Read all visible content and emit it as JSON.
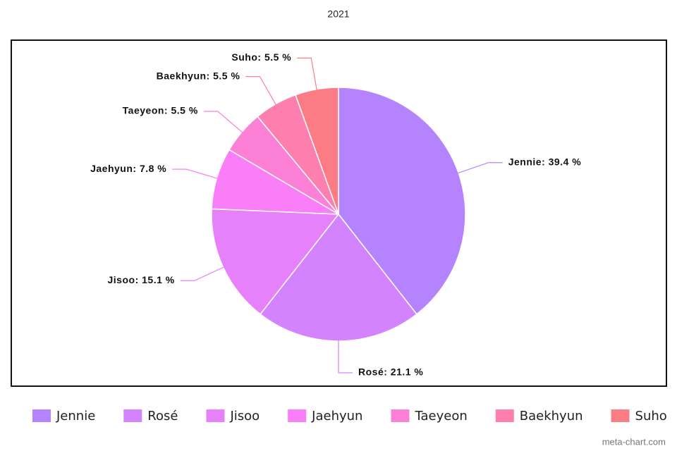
{
  "chart_data": {
    "type": "pie",
    "title": "2021",
    "categories": [
      "Jennie",
      "Rosé",
      "Jisoo",
      "Jaehyun",
      "Taeyeon",
      "Baekhyun",
      "Suho"
    ],
    "values": [
      39.4,
      21.1,
      15.1,
      7.8,
      5.5,
      5.5,
      5.5
    ],
    "value_labels": [
      "Jennie: 39.4 %",
      "Rosé: 21.1 %",
      "Jisoo: 15.1 %",
      "Jaehyun: 7.8 %",
      "Taeyeon: 5.5 %",
      "Baekhyun: 5.5 %",
      "Suho: 5.5 %"
    ],
    "colors": [
      "#b683fe",
      "#d383fd",
      "#e680fb",
      "#fa7ef8",
      "#fb80d6",
      "#fc7fae",
      "#fc7c85"
    ],
    "legend": "bottom",
    "watermark": "meta-chart.com"
  }
}
